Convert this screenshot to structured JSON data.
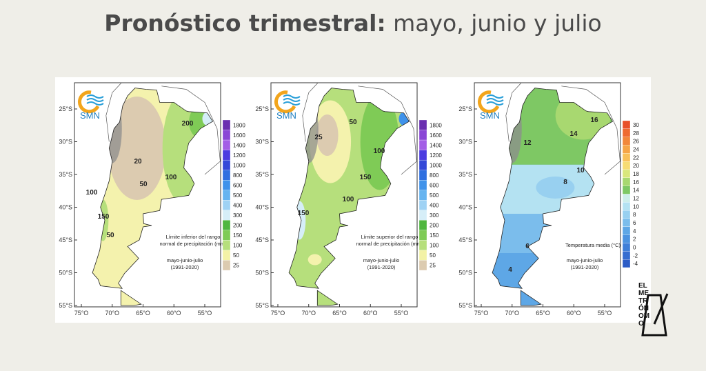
{
  "header": {
    "title_bold": "Pronóstico trimestral:",
    "title_rest": "mayo, junio y julio"
  },
  "maps": [
    {
      "logo": "SMN",
      "lat_labels": [
        "25°S",
        "30°S",
        "35°S",
        "40°S",
        "45°S",
        "50°S",
        "55°S"
      ],
      "lon_labels": [
        "75°O",
        "70°O",
        "65°O",
        "60°O",
        "55°O"
      ],
      "caption": [
        "Límite inferior del rango",
        "normal de precipitación (mm)"
      ],
      "period": [
        "mayo-junio-julio",
        "(1991-2020)"
      ],
      "legend": [
        {
          "label": "1800",
          "color": "#6a2fb0"
        },
        {
          "label": "1600",
          "color": "#8a46d6"
        },
        {
          "label": "1400",
          "color": "#a35ee6"
        },
        {
          "label": "1200",
          "color": "#4b3be0"
        },
        {
          "label": "1000",
          "color": "#3448d8"
        },
        {
          "label": "800",
          "color": "#2f6fe0"
        },
        {
          "label": "600",
          "color": "#3f92ea"
        },
        {
          "label": "500",
          "color": "#66b4f0"
        },
        {
          "label": "400",
          "color": "#9fd2f4"
        },
        {
          "label": "300",
          "color": "#d6eef8"
        },
        {
          "label": "200",
          "color": "#4fb63f"
        },
        {
          "label": "150",
          "color": "#7fcb56"
        },
        {
          "label": "100",
          "color": "#b6df7c"
        },
        {
          "label": "50",
          "color": "#f3f2a6"
        },
        {
          "label": "25",
          "color": "#dccbb0"
        }
      ],
      "contours": [
        "200",
        "100",
        "50",
        "20",
        "100",
        "150",
        "50"
      ]
    },
    {
      "logo": "SMN",
      "lat_labels": [
        "25°S",
        "30°S",
        "35°S",
        "40°S",
        "45°S",
        "50°S",
        "55°S"
      ],
      "lon_labels": [
        "75°O",
        "70°O",
        "65°O",
        "60°O",
        "55°O"
      ],
      "caption": [
        "Límite superior del rango",
        "normal de precipitación (mm)"
      ],
      "period": [
        "mayo-junio-julio",
        "(1991-2020)"
      ],
      "legend": [
        {
          "label": "1800",
          "color": "#6a2fb0"
        },
        {
          "label": "1600",
          "color": "#8a46d6"
        },
        {
          "label": "1400",
          "color": "#a35ee6"
        },
        {
          "label": "1200",
          "color": "#4b3be0"
        },
        {
          "label": "1000",
          "color": "#3448d8"
        },
        {
          "label": "800",
          "color": "#2f6fe0"
        },
        {
          "label": "600",
          "color": "#3f92ea"
        },
        {
          "label": "500",
          "color": "#66b4f0"
        },
        {
          "label": "400",
          "color": "#9fd2f4"
        },
        {
          "label": "300",
          "color": "#d6eef8"
        },
        {
          "label": "200",
          "color": "#4fb63f"
        },
        {
          "label": "150",
          "color": "#7fcb56"
        },
        {
          "label": "100",
          "color": "#b6df7c"
        },
        {
          "label": "50",
          "color": "#f3f2a6"
        },
        {
          "label": "25",
          "color": "#dccbb0"
        }
      ],
      "contours": [
        "50",
        "25",
        "100",
        "150",
        "100",
        "150"
      ]
    },
    {
      "logo": "SMN",
      "lat_labels": [
        "25°S",
        "30°S",
        "35°S",
        "40°S",
        "45°S",
        "50°S",
        "55°S"
      ],
      "lon_labels": [
        "75°O",
        "70°O",
        "65°O",
        "60°O",
        "55°O"
      ],
      "caption": [
        "Temperatura media (°C)"
      ],
      "period": [
        "mayo-junio-julio",
        "(1991-2020)"
      ],
      "legend": [
        {
          "label": "30",
          "color": "#e8502a"
        },
        {
          "label": "28",
          "color": "#ee6a30"
        },
        {
          "label": "26",
          "color": "#f2873a"
        },
        {
          "label": "24",
          "color": "#f6a547"
        },
        {
          "label": "22",
          "color": "#f8c05a"
        },
        {
          "label": "20",
          "color": "#f6dc74"
        },
        {
          "label": "18",
          "color": "#d9e77c"
        },
        {
          "label": "16",
          "color": "#a8d870"
        },
        {
          "label": "14",
          "color": "#7ec864"
        },
        {
          "label": "12",
          "color": "#cdeeea"
        },
        {
          "label": "10",
          "color": "#b4e2f2"
        },
        {
          "label": "8",
          "color": "#98d0f0"
        },
        {
          "label": "6",
          "color": "#7bbdec"
        },
        {
          "label": "4",
          "color": "#5ea7e6"
        },
        {
          "label": "2",
          "color": "#4c93e0"
        },
        {
          "label": "0",
          "color": "#3f7fd8"
        },
        {
          "label": "-2",
          "color": "#356dd0"
        },
        {
          "label": "-4",
          "color": "#2c5cc6"
        }
      ],
      "contours": [
        "16",
        "14",
        "12",
        "10",
        "8",
        "6",
        "4"
      ]
    }
  ],
  "brand": [
    "EL",
    "ME",
    "TR",
    "ÓN",
    "OM",
    "O"
  ]
}
